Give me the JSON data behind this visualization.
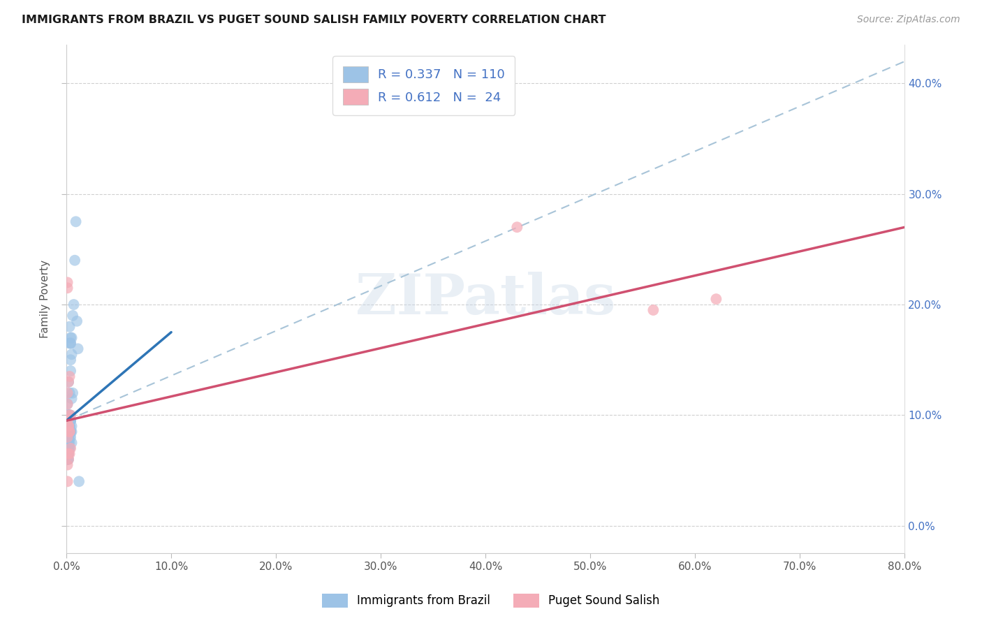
{
  "title": "IMMIGRANTS FROM BRAZIL VS PUGET SOUND SALISH FAMILY POVERTY CORRELATION CHART",
  "source": "Source: ZipAtlas.com",
  "ylabel": "Family Poverty",
  "xlim": [
    0.0,
    0.8
  ],
  "ylim": [
    -0.025,
    0.435
  ],
  "brazil_color": "#9dc3e6",
  "salish_color": "#f4acb7",
  "brazil_line_color": "#2e75b6",
  "salish_line_color": "#d05070",
  "dashed_line_color": "#a8c4d8",
  "legend_r_brazil": "R = 0.337",
  "legend_n_brazil": "N = 110",
  "legend_r_salish": "R = 0.612",
  "legend_n_salish": "N =  24",
  "watermark_text": "ZIPatlas",
  "background_color": "#ffffff",
  "brazil_x": [
    0.001,
    0.002,
    0.003,
    0.001,
    0.002,
    0.003,
    0.004,
    0.001,
    0.002,
    0.001,
    0.003,
    0.002,
    0.001,
    0.004,
    0.005,
    0.002,
    0.001,
    0.003,
    0.001,
    0.002,
    0.001,
    0.002,
    0.003,
    0.001,
    0.004,
    0.002,
    0.001,
    0.003,
    0.002,
    0.001,
    0.005,
    0.002,
    0.003,
    0.001,
    0.002,
    0.004,
    0.001,
    0.003,
    0.002,
    0.001,
    0.006,
    0.003,
    0.002,
    0.001,
    0.004,
    0.002,
    0.003,
    0.001,
    0.005,
    0.002,
    0.001,
    0.003,
    0.002,
    0.004,
    0.001,
    0.002,
    0.003,
    0.005,
    0.001,
    0.002,
    0.003,
    0.004,
    0.001,
    0.002,
    0.007,
    0.003,
    0.002,
    0.001,
    0.004,
    0.002,
    0.001,
    0.003,
    0.005,
    0.002,
    0.001,
    0.008,
    0.003,
    0.002,
    0.001,
    0.004,
    0.002,
    0.003,
    0.001,
    0.006,
    0.002,
    0.001,
    0.003,
    0.002,
    0.004,
    0.001,
    0.003,
    0.002,
    0.009,
    0.001,
    0.002,
    0.003,
    0.004,
    0.001,
    0.01,
    0.002,
    0.003,
    0.001,
    0.005,
    0.002,
    0.004,
    0.001,
    0.003,
    0.002,
    0.011,
    0.012
  ],
  "brazil_y": [
    0.07,
    0.09,
    0.095,
    0.1,
    0.08,
    0.07,
    0.08,
    0.11,
    0.085,
    0.09,
    0.1,
    0.07,
    0.065,
    0.095,
    0.085,
    0.08,
    0.075,
    0.09,
    0.06,
    0.07,
    0.08,
    0.09,
    0.095,
    0.07,
    0.085,
    0.06,
    0.065,
    0.1,
    0.075,
    0.08,
    0.075,
    0.085,
    0.07,
    0.065,
    0.09,
    0.085,
    0.07,
    0.1,
    0.065,
    0.06,
    0.12,
    0.09,
    0.095,
    0.07,
    0.085,
    0.08,
    0.075,
    0.065,
    0.09,
    0.1,
    0.08,
    0.085,
    0.065,
    0.095,
    0.07,
    0.075,
    0.08,
    0.115,
    0.065,
    0.085,
    0.09,
    0.095,
    0.07,
    0.075,
    0.2,
    0.165,
    0.13,
    0.08,
    0.14,
    0.085,
    0.07,
    0.09,
    0.17,
    0.075,
    0.065,
    0.24,
    0.18,
    0.085,
    0.06,
    0.15,
    0.08,
    0.09,
    0.07,
    0.19,
    0.075,
    0.065,
    0.095,
    0.085,
    0.17,
    0.07,
    0.12,
    0.09,
    0.275,
    0.065,
    0.08,
    0.095,
    0.165,
    0.07,
    0.185,
    0.09,
    0.1,
    0.065,
    0.155,
    0.085,
    0.165,
    0.08,
    0.095,
    0.09,
    0.16,
    0.04
  ],
  "salish_x": [
    0.001,
    0.001,
    0.002,
    0.001,
    0.003,
    0.001,
    0.002,
    0.001,
    0.002,
    0.003,
    0.001,
    0.004,
    0.002,
    0.001,
    0.003,
    0.002,
    0.001,
    0.004,
    0.002,
    0.003,
    0.43,
    0.56,
    0.001,
    0.62
  ],
  "salish_y": [
    0.22,
    0.215,
    0.13,
    0.12,
    0.135,
    0.11,
    0.1,
    0.095,
    0.09,
    0.085,
    0.08,
    0.1,
    0.09,
    0.065,
    0.085,
    0.065,
    0.055,
    0.07,
    0.06,
    0.065,
    0.27,
    0.195,
    0.04,
    0.205
  ],
  "brazil_line_x_start": 0.0,
  "brazil_line_x_end": 0.1,
  "brazil_line_y_start": 0.095,
  "brazil_line_y_end": 0.175,
  "salish_line_x_start": 0.0,
  "salish_line_x_end": 0.8,
  "salish_line_y_start": 0.095,
  "salish_line_y_end": 0.27,
  "dashed_line_x_start": 0.0,
  "dashed_line_x_end": 0.8,
  "dashed_line_y_start": 0.095,
  "dashed_line_y_end": 0.42
}
